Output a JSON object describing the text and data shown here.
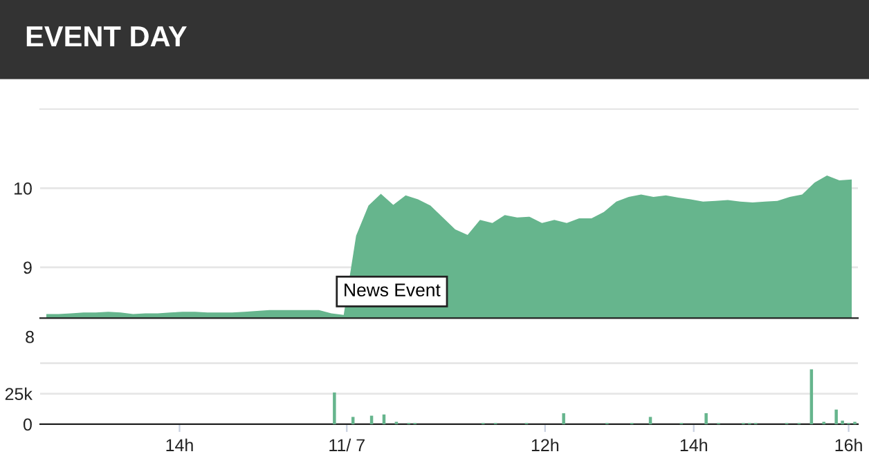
{
  "chart_data": [
    {
      "type": "area",
      "title": "EVENT DAY",
      "color": "#66b58d",
      "categories": [
        null,
        null,
        null,
        null,
        null,
        null,
        null,
        null,
        null,
        null,
        null,
        null,
        null,
        null,
        null,
        null,
        null,
        null,
        null,
        null,
        null,
        null,
        null,
        null,
        null,
        null,
        null,
        null,
        null,
        null,
        null,
        null,
        null,
        null,
        null,
        null,
        null,
        null,
        null,
        null,
        null,
        null,
        null,
        null,
        null,
        null,
        null,
        null,
        null,
        null,
        null,
        null,
        null,
        null,
        null,
        null,
        null,
        null,
        null,
        null,
        null,
        null,
        null,
        null,
        null,
        null
      ],
      "values": [
        8.41,
        8.41,
        8.42,
        8.43,
        8.43,
        8.44,
        8.43,
        8.41,
        8.42,
        8.42,
        8.43,
        8.44,
        8.44,
        8.43,
        8.43,
        8.43,
        8.44,
        8.45,
        8.46,
        8.46,
        8.46,
        8.46,
        8.46,
        8.42,
        8.4,
        9.4,
        9.78,
        9.93,
        9.79,
        9.91,
        9.86,
        9.78,
        9.63,
        9.48,
        9.41,
        9.6,
        9.56,
        9.66,
        9.63,
        9.64,
        9.56,
        9.6,
        9.56,
        9.62,
        9.62,
        9.7,
        9.83,
        9.89,
        9.92,
        9.89,
        9.91,
        9.88,
        9.86,
        9.83,
        9.84,
        9.85,
        9.83,
        9.82,
        9.83,
        9.84,
        9.89,
        9.92,
        10.07,
        10.16,
        10.1,
        10.11
      ],
      "ylim": [
        8.36,
        11
      ],
      "yticks": [
        9,
        10
      ],
      "grid": "y",
      "tick_labels": "y",
      "annotations": [
        "News Event",
        "8"
      ]
    },
    {
      "type": "bar",
      "color": "#66b58d",
      "categories": [
        null,
        null,
        null,
        null,
        null,
        null,
        null,
        null,
        null,
        null,
        null,
        null,
        null,
        null,
        null,
        null,
        null,
        null,
        null,
        null,
        null,
        null,
        "14h",
        null,
        null,
        null,
        null,
        null,
        null,
        null,
        null,
        null,
        null,
        null,
        null,
        null,
        null,
        null,
        null,
        null,
        null,
        null,
        null,
        null,
        null,
        null,
        null,
        null,
        null,
        "11/ 7",
        null,
        null,
        null,
        null,
        null,
        null,
        null,
        null,
        null,
        null,
        null,
        null,
        null,
        null,
        null,
        null,
        null,
        null,
        null,
        null,
        null,
        null,
        null,
        null,
        null,
        null,
        null,
        null,
        null,
        null,
        null,
        "12h",
        null,
        null,
        null,
        null,
        null,
        null,
        null,
        null,
        null,
        null,
        null,
        null,
        null,
        null,
        null,
        null,
        null,
        null,
        null,
        null,
        null,
        null,
        null,
        "14h",
        null,
        null,
        null,
        null,
        null,
        null,
        null,
        null,
        null,
        null,
        null,
        null,
        null,
        null,
        null,
        null,
        null,
        null,
        null,
        null,
        null,
        null,
        null,
        null,
        "16h",
        null
      ],
      "values": [
        null,
        null,
        null,
        null,
        null,
        null,
        null,
        null,
        null,
        null,
        null,
        null,
        null,
        null,
        null,
        null,
        null,
        null,
        null,
        null,
        null,
        null,
        null,
        null,
        null,
        null,
        null,
        null,
        null,
        null,
        null,
        null,
        null,
        null,
        null,
        null,
        null,
        null,
        null,
        null,
        null,
        null,
        null,
        null,
        null,
        null,
        null,
        26000,
        null,
        null,
        6000,
        null,
        null,
        7000,
        null,
        8000,
        null,
        2000,
        null,
        1000,
        1000,
        null,
        null,
        null,
        null,
        null,
        null,
        null,
        null,
        null,
        null,
        1000,
        null,
        1000,
        null,
        null,
        null,
        null,
        1000,
        null,
        null,
        null,
        null,
        null,
        9000,
        null,
        null,
        null,
        null,
        null,
        null,
        1000,
        null,
        null,
        null,
        1000,
        null,
        null,
        6000,
        null,
        null,
        null,
        null,
        1000,
        null,
        null,
        null,
        9000,
        null,
        1000,
        null,
        null,
        null,
        1000,
        1000,
        1000,
        null,
        null,
        null,
        null,
        1000,
        null,
        1000,
        null,
        45000,
        null,
        2000,
        null,
        12000,
        3000,
        1000,
        2000
      ],
      "ylim": [
        0,
        87000
      ],
      "yticks": [
        0,
        {
          "value": 25000,
          "label": "25k"
        },
        {
          "value": 50000,
          "label": null
        }
      ],
      "grid": "y"
    }
  ]
}
